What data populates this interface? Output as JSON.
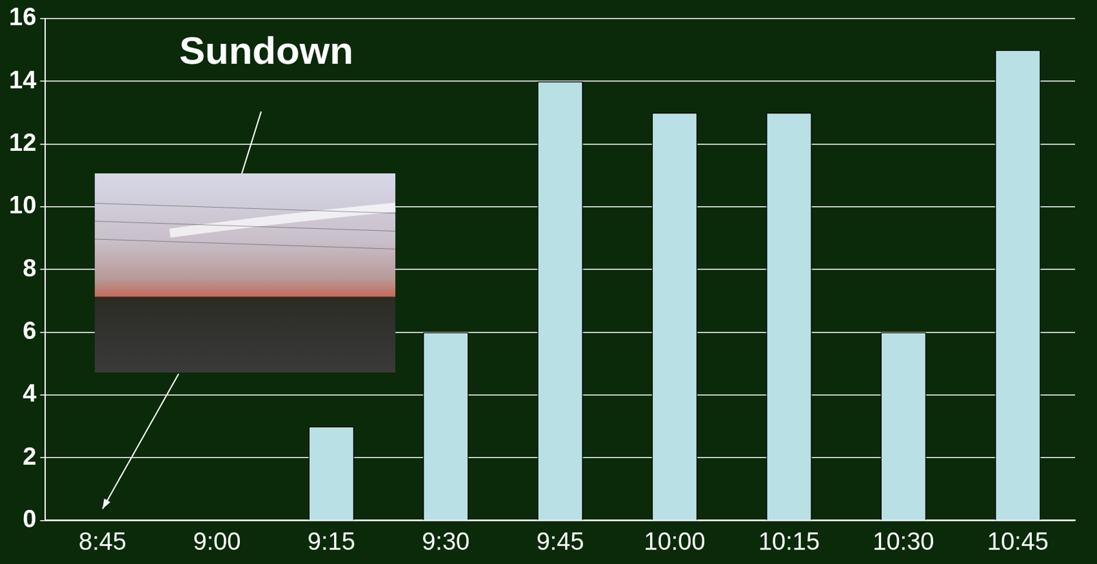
{
  "chart_data": {
    "type": "bar",
    "categories": [
      "8:45",
      "9:00",
      "9:15",
      "9:30",
      "9:45",
      "10:00",
      "10:15",
      "10:30",
      "10:45"
    ],
    "values": [
      0,
      0,
      3,
      6,
      14,
      13,
      13,
      6,
      15
    ],
    "color": "#b9e0e4",
    "ylim": [
      0,
      16
    ],
    "yticks": [
      0,
      2,
      4,
      6,
      8,
      10,
      12,
      14,
      16
    ],
    "grid": true,
    "annotations": [
      {
        "text": "Sundown",
        "category": "8:45"
      }
    ]
  }
}
